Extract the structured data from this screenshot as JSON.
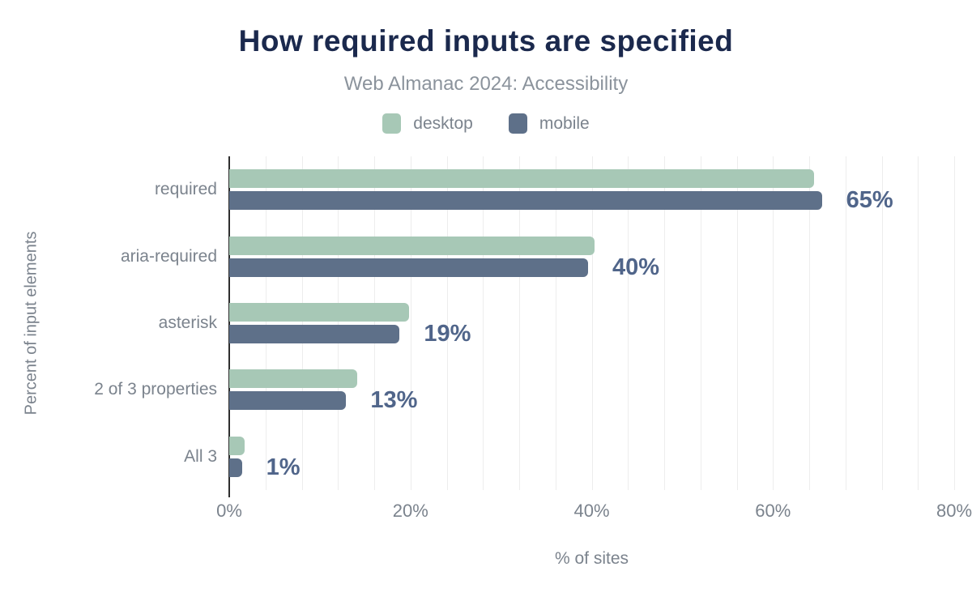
{
  "header": {
    "title": "How required inputs are specified",
    "subtitle": "Web Almanac 2024: Accessibility"
  },
  "legend": [
    {
      "label": "desktop",
      "color": "#a7c8b6"
    },
    {
      "label": "mobile",
      "color": "#5e7089"
    }
  ],
  "colors": {
    "title": "#1b294d",
    "subtitle": "#8b939c",
    "axis_text": "#7b838d",
    "desktop": "#a7c8b6",
    "mobile": "#5e7089",
    "value_label": "#50658a",
    "gridline": "#ededed",
    "axis_line": "#2e2e2e"
  },
  "chart_data": {
    "type": "bar",
    "orientation": "horizontal",
    "title": "How required inputs are specified",
    "subtitle": "Web Almanac 2024: Accessibility",
    "categories": [
      "required",
      "aria-required",
      "asterisk",
      "2 of 3 properties",
      "All 3"
    ],
    "series": [
      {
        "name": "desktop",
        "values": [
          64.5,
          40.3,
          19.8,
          14.1,
          1.7
        ]
      },
      {
        "name": "mobile",
        "values": [
          65.4,
          39.6,
          18.8,
          12.9,
          1.4
        ]
      }
    ],
    "value_labels": [
      "65%",
      "40%",
      "19%",
      "13%",
      "1%"
    ],
    "xlabel": "% of sites",
    "ylabel": "Percent of input elements",
    "xlim": [
      0,
      80
    ],
    "x_ticks": [
      "0%",
      "20%",
      "40%",
      "60%",
      "80%"
    ],
    "x_tick_values": [
      0,
      20,
      40,
      60,
      80
    ],
    "grid_interval": 4,
    "grid": "vertical",
    "legend_position": "top"
  }
}
